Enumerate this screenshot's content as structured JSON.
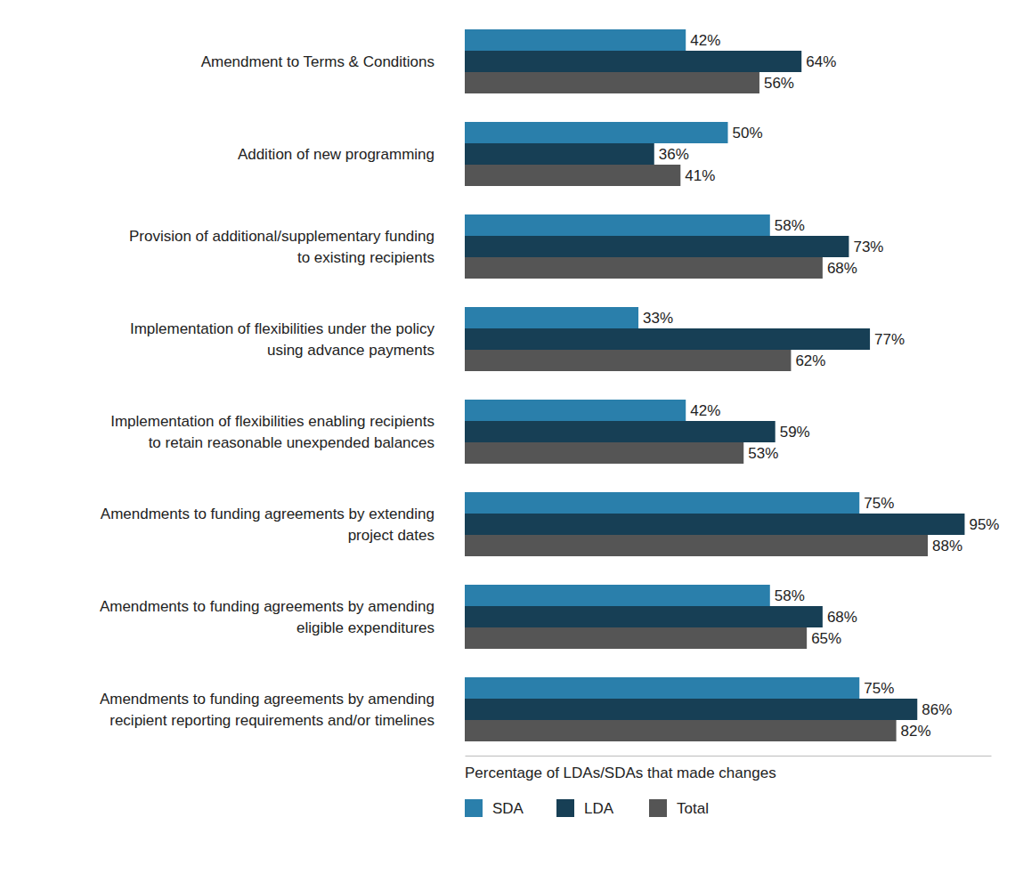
{
  "chart_data": {
    "type": "bar",
    "orientation": "horizontal",
    "categories": [
      "Amendment to Terms & Conditions",
      "Addition of new programming",
      "Provision of additional/supplementary funding\nto existing recipients",
      "Implementation of flexibilities under the policy\nusing advance payments",
      "Implementation of flexibilities enabling recipients\nto retain reasonable unexpended balances",
      "Amendments to funding agreements by extending\nproject dates",
      "Amendments to funding agreements by amending\neligible expenditures",
      "Amendments to funding agreements by amending\nrecipient reporting requirements and/or timelines"
    ],
    "series": [
      {
        "name": "SDA",
        "color": "#2a7fab",
        "values": [
          42,
          50,
          58,
          33,
          42,
          75,
          58,
          75
        ],
        "value_labels": [
          "42%",
          "50%",
          "58%",
          "33%",
          "42%",
          "75%",
          "58%",
          "75%"
        ]
      },
      {
        "name": "LDA",
        "color": "#173f55",
        "values": [
          64,
          36,
          73,
          77,
          59,
          95,
          68,
          86
        ],
        "value_labels": [
          "64%",
          "36%",
          "73%",
          "77%",
          "59%",
          "95%",
          "68%",
          "86%"
        ]
      },
      {
        "name": "Total",
        "color": "#555555",
        "values": [
          56,
          41,
          68,
          62,
          53,
          88,
          65,
          82
        ],
        "value_labels": [
          "56%",
          "41%",
          "68%",
          "62%",
          "53%",
          "88%",
          "65%",
          "82%"
        ]
      }
    ],
    "xlabel": "Percentage of LDAs/SDAs that made changes",
    "xlim": [
      0,
      100
    ],
    "data_labels": true,
    "tick_labels": false,
    "grid": false,
    "legend": "bottom-left"
  }
}
